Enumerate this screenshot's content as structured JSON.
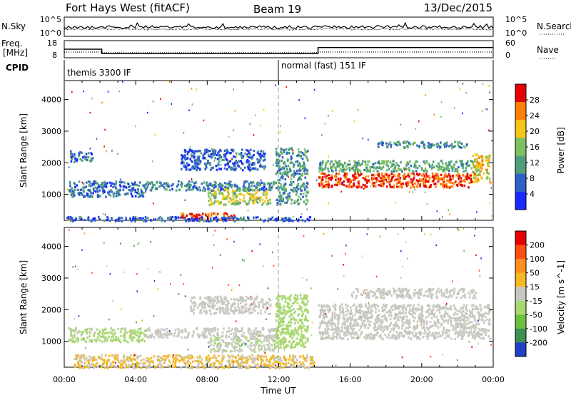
{
  "header": {
    "radar": "Fort Hays West (fitACF)",
    "beam": "Beam 19",
    "date": "13/Dec/2015"
  },
  "status_panel": {
    "nsky_label": "N.Sky",
    "nsearch_label": "N.Search",
    "freq_label_1": "Freq.",
    "freq_label_2": "[MHz]",
    "nave_label": "Nave",
    "cpid_label": "CPID",
    "noise_ticks_left": [
      "10^5",
      "10^0"
    ],
    "noise_ticks_right": [
      "10^5",
      "10^0"
    ],
    "freq_ticks": [
      "18",
      "8"
    ],
    "nave_ticks": [
      "60",
      "0"
    ],
    "cpid_segments": [
      {
        "start_hour": 0,
        "end_hour": 12,
        "label": "themis 3300 IF"
      },
      {
        "start_hour": 12,
        "end_hour": 24,
        "label": "normal (fast) 151 IF"
      }
    ],
    "freq_mhz": [
      {
        "start_hour": 0,
        "end_hour": 2.1,
        "value": 13
      },
      {
        "start_hour": 2.1,
        "end_hour": 14.2,
        "value": 10.5
      },
      {
        "start_hour": 14.2,
        "end_hour": 24,
        "value": 14
      }
    ]
  },
  "chart_data": [
    {
      "type": "heatmap",
      "quantity": "Power",
      "xlabel": "",
      "ylabel": "Slant Range [km]",
      "xlim": [
        0,
        24
      ],
      "ylim": [
        180,
        4600
      ],
      "yticks": [
        1000,
        2000,
        3000,
        4000
      ],
      "colorbar_label": "Power [dB]",
      "colorbar_ticks": [
        "4",
        "8",
        "12",
        "16",
        "20",
        "24",
        "28"
      ],
      "colorbar_colors": [
        "#1a2aff",
        "#2f61c8",
        "#4fa07a",
        "#7fc060",
        "#f5c518",
        "#ff7f00",
        "#e60000"
      ],
      "features": [
        {
          "t0": 0.3,
          "t1": 1.6,
          "r0": 2050,
          "r1": 2400,
          "value_db": 8
        },
        {
          "t0": 0.2,
          "t1": 4.5,
          "r0": 950,
          "r1": 1450,
          "value_db": 8
        },
        {
          "t0": 4.5,
          "t1": 11.8,
          "r0": 1150,
          "r1": 1450,
          "value_db": 9
        },
        {
          "t0": 6.5,
          "t1": 11.2,
          "r0": 1800,
          "r1": 2450,
          "value_db": 7
        },
        {
          "t0": 8.0,
          "t1": 11.5,
          "r0": 700,
          "r1": 1200,
          "value_db": 18
        },
        {
          "t0": 6.5,
          "t1": 9.5,
          "r0": 220,
          "r1": 450,
          "value_db": 27
        },
        {
          "t0": 11.8,
          "t1": 13.6,
          "r0": 700,
          "r1": 2500,
          "value_db": 11
        },
        {
          "t0": 14.2,
          "t1": 22.8,
          "r0": 1250,
          "r1": 1700,
          "value_db": 28
        },
        {
          "t0": 14.2,
          "t1": 23.2,
          "r0": 1750,
          "r1": 2100,
          "value_db": 13
        },
        {
          "t0": 17.5,
          "t1": 22.5,
          "r0": 2500,
          "r1": 2700,
          "value_db": 10
        },
        {
          "t0": 22.8,
          "t1": 23.8,
          "r0": 1400,
          "r1": 2300,
          "value_db": 20
        },
        {
          "t0": 0.0,
          "t1": 14.0,
          "r0": 180,
          "r1": 320,
          "value_db": 6
        }
      ]
    },
    {
      "type": "heatmap",
      "quantity": "Velocity",
      "xlabel": "Time UT",
      "ylabel": "Slant Range [km]",
      "xlim": [
        0,
        24
      ],
      "ylim": [
        180,
        4600
      ],
      "xticks": [
        "00:00",
        "04:00",
        "08:00",
        "12:00",
        "16:00",
        "20:00",
        "00:00"
      ],
      "yticks": [
        1000,
        2000,
        3000,
        4000
      ],
      "colorbar_label": "Velocity [m s^-1]",
      "colorbar_ticks": [
        "200",
        "100",
        "50",
        "15",
        "-15",
        "-50",
        "-100",
        "-200"
      ],
      "colorbar_colors": [
        "#2040c8",
        "#3c9050",
        "#6cc040",
        "#a8d870",
        "#c8c8c0",
        "#f5b820",
        "#ff9020",
        "#ff5010",
        "#e60000"
      ],
      "features": [
        {
          "t0": 0.2,
          "t1": 4.5,
          "r0": 1000,
          "r1": 1450,
          "value_ms": 40
        },
        {
          "t0": 4.5,
          "t1": 11.8,
          "r0": 1150,
          "r1": 1450,
          "value_ms": 0
        },
        {
          "t0": 7.0,
          "t1": 11.5,
          "r0": 1900,
          "r1": 2450,
          "value_ms": 0
        },
        {
          "t0": 8.0,
          "t1": 11.8,
          "r0": 700,
          "r1": 1200,
          "value_ms": 20
        },
        {
          "t0": 0.5,
          "t1": 14.0,
          "r0": 180,
          "r1": 600,
          "value_ms": -30
        },
        {
          "t0": 11.8,
          "t1": 13.6,
          "r0": 800,
          "r1": 2500,
          "value_ms": 60
        },
        {
          "t0": 14.2,
          "t1": 23.8,
          "r0": 1100,
          "r1": 2200,
          "value_ms": 0
        },
        {
          "t0": 16.0,
          "t1": 23.0,
          "r0": 2400,
          "r1": 2700,
          "value_ms": 0
        }
      ]
    }
  ]
}
